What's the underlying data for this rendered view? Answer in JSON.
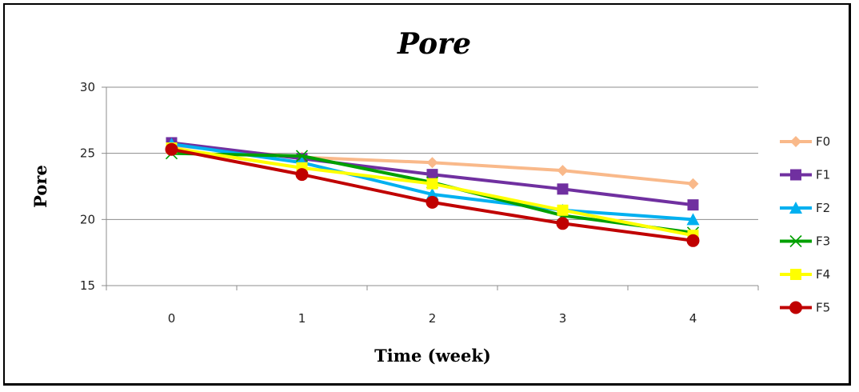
{
  "chart_data": {
    "type": "line",
    "title": "Pore",
    "xlabel": "Time (week)",
    "ylabel": "Pore",
    "categories": [
      "0",
      "1",
      "2",
      "3",
      "4"
    ],
    "ylim": [
      15,
      30
    ],
    "yticks": [
      15,
      20,
      25,
      30
    ],
    "grid": "horizontal",
    "legend": "right",
    "series": [
      {
        "name": "F0",
        "color": "#F9B98A",
        "marker": "diamond",
        "values": [
          25.6,
          24.7,
          24.3,
          23.7,
          22.7
        ]
      },
      {
        "name": "F1",
        "color": "#7030A0",
        "marker": "square",
        "values": [
          25.8,
          24.6,
          23.4,
          22.3,
          21.1
        ]
      },
      {
        "name": "F2",
        "color": "#00B0F0",
        "marker": "triangle",
        "values": [
          25.7,
          24.3,
          21.9,
          20.7,
          20.0
        ]
      },
      {
        "name": "F3",
        "color": "#00A000",
        "marker": "x",
        "values": [
          25.0,
          24.8,
          22.8,
          20.3,
          19.0
        ]
      },
      {
        "name": "F4",
        "color": "#FFFF00",
        "marker": "square",
        "values": [
          25.4,
          23.9,
          22.7,
          20.7,
          18.8
        ]
      },
      {
        "name": "F5",
        "color": "#C00000",
        "marker": "circle",
        "values": [
          25.3,
          23.4,
          21.3,
          19.7,
          18.4
        ]
      }
    ]
  }
}
